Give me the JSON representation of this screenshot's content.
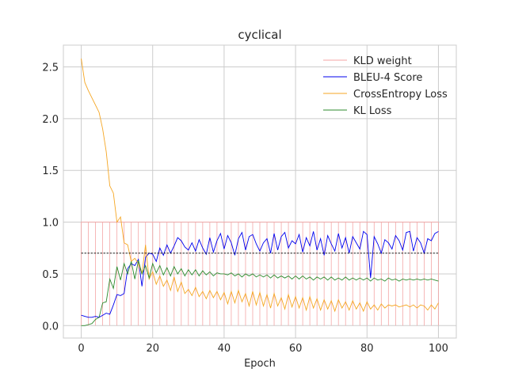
{
  "chart_data": {
    "type": "line",
    "title": "cyclical",
    "xlabel": "Epoch",
    "ylabel": "",
    "xlim": [
      -5,
      105
    ],
    "ylim": [
      -0.12,
      2.71
    ],
    "xticks": [
      0,
      20,
      40,
      60,
      80,
      100
    ],
    "yticks": [
      0.0,
      0.5,
      1.0,
      1.5,
      2.0,
      2.5
    ],
    "grid": true,
    "legend_position": "top-right",
    "reference_line": {
      "y": 0.7,
      "x_range": [
        0,
        100
      ],
      "style": "dashed",
      "color": "#000000"
    },
    "series": [
      {
        "name": "KLD weight",
        "color": "#f4a6a6",
        "pattern": "sawtooth",
        "period": 2,
        "low": 0.0,
        "high": 1.0,
        "x_range": [
          0,
          100
        ]
      },
      {
        "name": "BLEU-4 Score",
        "color": "#0000ee",
        "x": [
          0,
          1,
          2,
          3,
          4,
          5,
          6,
          7,
          8,
          9,
          10,
          11,
          12,
          13,
          14,
          15,
          16,
          17,
          18,
          19,
          20,
          21,
          22,
          23,
          24,
          25,
          26,
          27,
          28,
          29,
          30,
          31,
          32,
          33,
          34,
          35,
          36,
          37,
          38,
          39,
          40,
          41,
          42,
          43,
          44,
          45,
          46,
          47,
          48,
          49,
          50,
          51,
          52,
          53,
          54,
          55,
          56,
          57,
          58,
          59,
          60,
          61,
          62,
          63,
          64,
          65,
          66,
          67,
          68,
          69,
          70,
          71,
          72,
          73,
          74,
          75,
          76,
          77,
          78,
          79,
          80,
          81,
          82,
          83,
          84,
          85,
          86,
          87,
          88,
          89,
          90,
          91,
          92,
          93,
          94,
          95,
          96,
          97,
          98,
          99,
          100
        ],
        "values": [
          0.1,
          0.09,
          0.08,
          0.08,
          0.09,
          0.08,
          0.1,
          0.12,
          0.11,
          0.2,
          0.3,
          0.29,
          0.31,
          0.55,
          0.6,
          0.58,
          0.64,
          0.38,
          0.66,
          0.7,
          0.69,
          0.62,
          0.75,
          0.68,
          0.78,
          0.7,
          0.77,
          0.85,
          0.82,
          0.76,
          0.73,
          0.8,
          0.72,
          0.83,
          0.75,
          0.69,
          0.85,
          0.71,
          0.82,
          0.89,
          0.74,
          0.87,
          0.8,
          0.68,
          0.84,
          0.9,
          0.73,
          0.86,
          0.88,
          0.79,
          0.72,
          0.8,
          0.84,
          0.7,
          0.89,
          0.73,
          0.86,
          0.9,
          0.75,
          0.82,
          0.79,
          0.88,
          0.71,
          0.85,
          0.77,
          0.91,
          0.73,
          0.84,
          0.68,
          0.87,
          0.79,
          0.72,
          0.89,
          0.75,
          0.85,
          0.7,
          0.86,
          0.8,
          0.74,
          0.91,
          0.88,
          0.46,
          0.86,
          0.79,
          0.7,
          0.83,
          0.8,
          0.74,
          0.87,
          0.82,
          0.73,
          0.9,
          0.91,
          0.72,
          0.85,
          0.8,
          0.7,
          0.84,
          0.82,
          0.89,
          0.91
        ],
        "x_range_note": ""
      },
      {
        "name": "CrossEntropy Loss",
        "color": "#f5a623",
        "x": [
          0,
          1,
          2,
          3,
          4,
          5,
          6,
          7,
          8,
          9,
          10,
          11,
          12,
          13,
          14,
          15,
          16,
          17,
          18,
          19,
          20,
          21,
          22,
          23,
          24,
          25,
          26,
          27,
          28,
          29,
          30,
          31,
          32,
          33,
          34,
          35,
          36,
          37,
          38,
          39,
          40,
          41,
          42,
          43,
          44,
          45,
          46,
          47,
          48,
          49,
          50,
          51,
          52,
          53,
          54,
          55,
          56,
          57,
          58,
          59,
          60,
          61,
          62,
          63,
          64,
          65,
          66,
          67,
          68,
          69,
          70,
          71,
          72,
          73,
          74,
          75,
          76,
          77,
          78,
          79,
          80,
          81,
          82,
          83,
          84,
          85,
          86,
          87,
          88,
          89,
          90,
          91,
          92,
          93,
          94,
          95,
          96,
          97,
          98,
          99,
          100
        ],
        "values": [
          2.58,
          2.35,
          2.27,
          2.2,
          2.13,
          2.06,
          1.9,
          1.68,
          1.35,
          1.28,
          1.0,
          1.05,
          0.8,
          0.78,
          0.62,
          0.65,
          0.6,
          0.5,
          0.78,
          0.45,
          0.52,
          0.4,
          0.48,
          0.38,
          0.44,
          0.34,
          0.47,
          0.33,
          0.42,
          0.31,
          0.35,
          0.29,
          0.37,
          0.28,
          0.33,
          0.26,
          0.34,
          0.27,
          0.33,
          0.25,
          0.32,
          0.21,
          0.33,
          0.22,
          0.34,
          0.23,
          0.31,
          0.19,
          0.33,
          0.2,
          0.32,
          0.19,
          0.3,
          0.17,
          0.31,
          0.19,
          0.27,
          0.16,
          0.3,
          0.18,
          0.28,
          0.17,
          0.27,
          0.15,
          0.28,
          0.17,
          0.26,
          0.15,
          0.25,
          0.16,
          0.24,
          0.14,
          0.25,
          0.17,
          0.23,
          0.15,
          0.24,
          0.16,
          0.22,
          0.14,
          0.23,
          0.16,
          0.2,
          0.15,
          0.21,
          0.17,
          0.2,
          0.19,
          0.2,
          0.18,
          0.19,
          0.2,
          0.18,
          0.2,
          0.17,
          0.2,
          0.19,
          0.15,
          0.2,
          0.16,
          0.22
        ]
      },
      {
        "name": "KL Loss",
        "color": "#2e8b2e",
        "x": [
          0,
          1,
          2,
          3,
          4,
          5,
          6,
          7,
          8,
          9,
          10,
          11,
          12,
          13,
          14,
          15,
          16,
          17,
          18,
          19,
          20,
          21,
          22,
          23,
          24,
          25,
          26,
          27,
          28,
          29,
          30,
          31,
          32,
          33,
          34,
          35,
          36,
          37,
          38,
          39,
          40,
          41,
          42,
          43,
          44,
          45,
          46,
          47,
          48,
          49,
          50,
          51,
          52,
          53,
          54,
          55,
          56,
          57,
          58,
          59,
          60,
          61,
          62,
          63,
          64,
          65,
          66,
          67,
          68,
          69,
          70,
          71,
          72,
          73,
          74,
          75,
          76,
          77,
          78,
          79,
          80,
          81,
          82,
          83,
          84,
          85,
          86,
          87,
          88,
          89,
          90,
          91,
          92,
          93,
          94,
          95,
          96,
          97,
          98,
          99,
          100
        ],
        "values": [
          0.0,
          0.0,
          0.01,
          0.02,
          0.06,
          0.08,
          0.22,
          0.23,
          0.45,
          0.36,
          0.57,
          0.44,
          0.6,
          0.5,
          0.62,
          0.45,
          0.63,
          0.5,
          0.58,
          0.46,
          0.6,
          0.51,
          0.58,
          0.49,
          0.56,
          0.48,
          0.57,
          0.5,
          0.55,
          0.48,
          0.54,
          0.49,
          0.54,
          0.48,
          0.53,
          0.49,
          0.52,
          0.48,
          0.51,
          0.5,
          0.5,
          0.49,
          0.51,
          0.48,
          0.5,
          0.47,
          0.5,
          0.48,
          0.5,
          0.47,
          0.49,
          0.47,
          0.49,
          0.46,
          0.49,
          0.46,
          0.48,
          0.46,
          0.48,
          0.45,
          0.48,
          0.45,
          0.48,
          0.45,
          0.47,
          0.44,
          0.47,
          0.45,
          0.47,
          0.44,
          0.47,
          0.44,
          0.46,
          0.44,
          0.47,
          0.44,
          0.46,
          0.44,
          0.46,
          0.44,
          0.46,
          0.43,
          0.46,
          0.44,
          0.45,
          0.43,
          0.46,
          0.44,
          0.45,
          0.43,
          0.45,
          0.44,
          0.45,
          0.44,
          0.45,
          0.44,
          0.45,
          0.44,
          0.45,
          0.44,
          0.43
        ]
      }
    ]
  }
}
